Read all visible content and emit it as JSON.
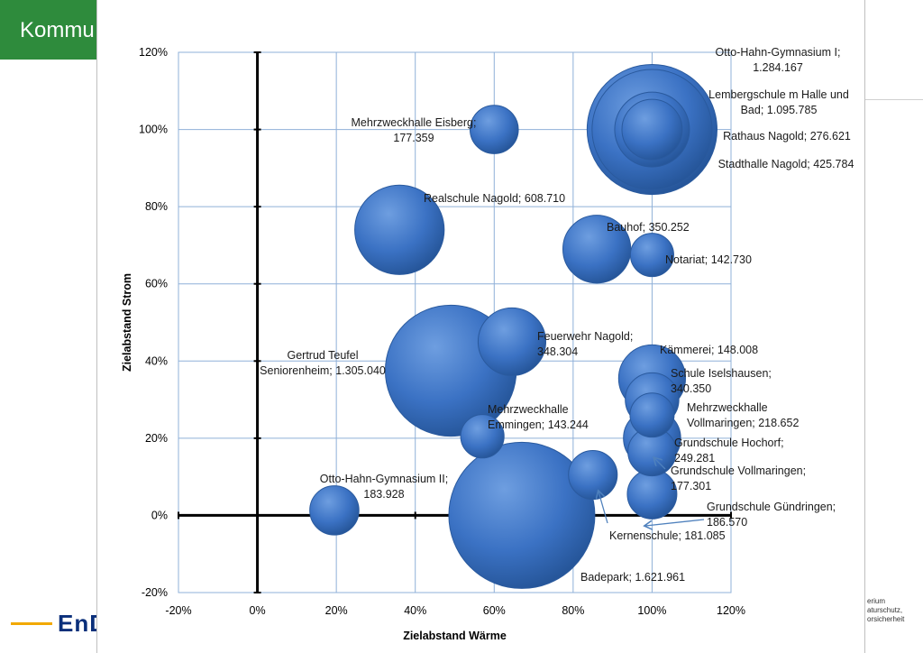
{
  "slide": {
    "title": "Kommu",
    "logo_text": "EnD",
    "footer_lines": [
      "erium",
      "aturschutz,",
      "orsicherheit"
    ]
  },
  "colors": {
    "banner": "#2e8b3c",
    "bubble": "#3b72c4",
    "bubble_edge": "#2a5a9e",
    "grid": "#8fb0d8",
    "arrow": "#4f81bd"
  },
  "chart_data": {
    "type": "bubble",
    "xlabel": "Zielabstand Wärme",
    "ylabel": "Zielabstand Strom",
    "xlim": [
      -0.2,
      1.2
    ],
    "ylim": [
      -0.2,
      1.2
    ],
    "x_ticks": [
      "-20%",
      "0%",
      "20%",
      "40%",
      "60%",
      "80%",
      "100%",
      "120%"
    ],
    "y_ticks": [
      "-20%",
      "0%",
      "20%",
      "40%",
      "60%",
      "80%",
      "100%",
      "120%"
    ],
    "grid": true,
    "points": [
      {
        "name": "Otto-Hahn-Gymnasium I",
        "x": 1.0,
        "y": 1.0,
        "size": 1284167,
        "label": [
          "Otto-Hahn-Gymnasium I;",
          "1.284.167"
        ]
      },
      {
        "name": "Lembergschule m Halle und Bad",
        "x": 1.0,
        "y": 1.0,
        "size": 1095785,
        "label": [
          "Lembergschule m Halle und",
          "Bad; 1.095.785"
        ]
      },
      {
        "name": "Rathaus Nagold",
        "x": 1.0,
        "y": 1.0,
        "size": 276621,
        "label": [
          "Rathaus Nagold; 276.621"
        ]
      },
      {
        "name": "Stadthalle Nagold",
        "x": 1.0,
        "y": 1.0,
        "size": 425784,
        "label": [
          "Stadthalle Nagold; 425.784"
        ]
      },
      {
        "name": "Mehrzweckhalle Eisberg",
        "x": 0.6,
        "y": 1.0,
        "size": 177359,
        "label": [
          "Mehrzweckhalle Eisberg;",
          "177.359"
        ]
      },
      {
        "name": "Realschule Nagold",
        "x": 0.36,
        "y": 0.74,
        "size": 608710,
        "label": [
          "Realschule Nagold; 608.710"
        ]
      },
      {
        "name": "Bauhof",
        "x": 0.86,
        "y": 0.69,
        "size": 350252,
        "label": [
          "Bauhof; 350.252"
        ]
      },
      {
        "name": "Notariat",
        "x": 1.0,
        "y": 0.675,
        "size": 142730,
        "label": [
          "Notariat; 142.730"
        ]
      },
      {
        "name": "Feuerwehr Nagold",
        "x": 0.645,
        "y": 0.45,
        "size": 348304,
        "label": [
          "Feuerwehr Nagold;",
          "348.304"
        ]
      },
      {
        "name": "Gertrud Teufel Seniorenheim",
        "x": 0.49,
        "y": 0.375,
        "size": 1305040,
        "label": [
          "Gertrud Teufel",
          "Seniorenheim; 1.305.040"
        ]
      },
      {
        "name": "Kämmerei",
        "x": 1.0,
        "y": 0.26,
        "size": 148008,
        "label": [
          "Kämmerei; 148.008"
        ]
      },
      {
        "name": "Schule Iselshausen",
        "x": 1.0,
        "y": 0.355,
        "size": 340350,
        "label": [
          "Schule Iselshausen;",
          "340.350"
        ]
      },
      {
        "name": "Mehrzweckhalle Vollmaringen",
        "x": 1.0,
        "y": 0.3,
        "size": 218652,
        "label": [
          "Mehrzweckhalle",
          "Vollmaringen; 218.652"
        ]
      },
      {
        "name": "Mehrzweckhalle Emmingen",
        "x": 0.57,
        "y": 0.205,
        "size": 143244,
        "label": [
          "Mehrzweckhalle",
          "Emmingen; 143.244"
        ]
      },
      {
        "name": "Grundschule Hochorf",
        "x": 1.0,
        "y": 0.2,
        "size": 249281,
        "label": [
          "Grundschule Hochorf;",
          "249.281"
        ]
      },
      {
        "name": "Grundschule Vollmaringen",
        "x": 1.0,
        "y": 0.165,
        "size": 177301,
        "label": [
          "Grundschule Vollmaringen;",
          "177.301"
        ]
      },
      {
        "name": "Otto-Hahn-Gymnasium II",
        "x": 0.195,
        "y": 0.013,
        "size": 183928,
        "label": [
          "Otto-Hahn-Gymnasium II;",
          "183.928"
        ]
      },
      {
        "name": "Kernenschule",
        "x": 0.85,
        "y": 0.105,
        "size": 181085,
        "label": [
          "Kernenschule; 181.085"
        ]
      },
      {
        "name": "Grundschule Gündringen",
        "x": 1.0,
        "y": 0.055,
        "size": 186570,
        "label": [
          "Grundschule Gündringen;",
          "186.570"
        ]
      },
      {
        "name": "Badepark",
        "x": 0.67,
        "y": 0.0,
        "size": 1621961,
        "label": [
          "Badepark; 1.621.961"
        ]
      }
    ]
  }
}
